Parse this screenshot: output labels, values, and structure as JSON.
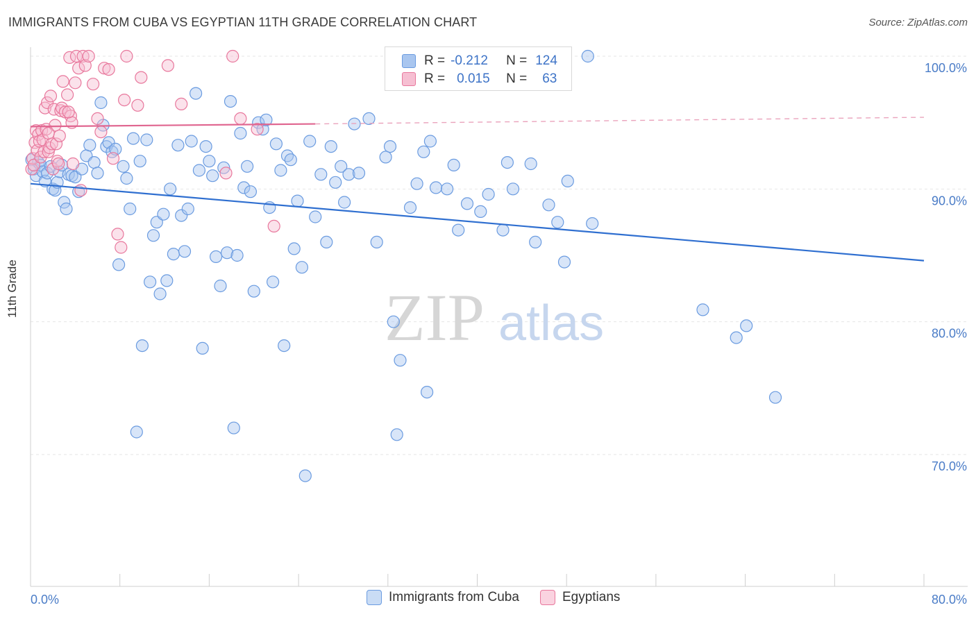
{
  "title": "IMMIGRANTS FROM CUBA VS EGYPTIAN 11TH GRADE CORRELATION CHART",
  "source": "Source: ZipAtlas.com",
  "watermark": {
    "zip": "ZIP",
    "atlas": "atlas"
  },
  "stats": [
    {
      "r_label": "R =",
      "r_value": "-0.212",
      "n_label": "N =",
      "n_value": "124",
      "color": "#4a7cc7",
      "fill": "#a9c6ef"
    },
    {
      "r_label": "R =",
      "r_value": "0.015",
      "n_label": "N =",
      "n_value": "63",
      "color": "#e8779c",
      "fill": "#f6bfd2"
    }
  ],
  "chart_data": {
    "type": "scatter",
    "title": "IMMIGRANTS FROM CUBA VS EGYPTIAN 11TH GRADE CORRELATION CHART",
    "xlabel": "",
    "ylabel": "11th Grade",
    "xlim": [
      0,
      80
    ],
    "ylim": [
      60,
      100
    ],
    "x_tick_labels": [
      "0.0%",
      "80.0%"
    ],
    "y_ticks": [
      70,
      80,
      90,
      100
    ],
    "y_tick_labels": [
      "70.0%",
      "80.0%",
      "90.0%",
      "100.0%"
    ],
    "grid": true,
    "legend_position": "bottom",
    "series": [
      {
        "name": "Immigrants from Cuba",
        "color": "#6a9be0",
        "fill": "#a9c6ef",
        "trend": {
          "x": [
            0,
            80
          ],
          "y": [
            90.4,
            84.6
          ]
        },
        "points": [
          [
            0.1,
            92.2
          ],
          [
            0.3,
            91.5
          ],
          [
            0.5,
            91.0
          ],
          [
            0.7,
            92.0
          ],
          [
            0.9,
            91.8
          ],
          [
            1.1,
            91.3
          ],
          [
            1.3,
            90.6
          ],
          [
            1.5,
            91.2
          ],
          [
            1.8,
            91.7
          ],
          [
            2.0,
            90.0
          ],
          [
            2.2,
            89.9
          ],
          [
            2.4,
            90.5
          ],
          [
            2.6,
            91.3
          ],
          [
            2.8,
            91.8
          ],
          [
            3.0,
            89.0
          ],
          [
            3.2,
            88.5
          ],
          [
            3.4,
            91.1
          ],
          [
            3.7,
            91.0
          ],
          [
            4.0,
            90.9
          ],
          [
            4.3,
            89.8
          ],
          [
            4.6,
            91.5
          ],
          [
            5.0,
            92.5
          ],
          [
            5.3,
            93.3
          ],
          [
            5.7,
            92.0
          ],
          [
            6.0,
            91.2
          ],
          [
            6.3,
            96.5
          ],
          [
            6.5,
            94.8
          ],
          [
            6.8,
            93.2
          ],
          [
            7.0,
            93.5
          ],
          [
            7.3,
            92.8
          ],
          [
            7.6,
            93.0
          ],
          [
            7.9,
            84.3
          ],
          [
            8.3,
            91.7
          ],
          [
            8.6,
            90.8
          ],
          [
            8.9,
            88.5
          ],
          [
            9.2,
            93.8
          ],
          [
            9.5,
            71.7
          ],
          [
            9.8,
            92.1
          ],
          [
            10.0,
            78.2
          ],
          [
            10.4,
            93.7
          ],
          [
            10.7,
            83.0
          ],
          [
            11.0,
            86.5
          ],
          [
            11.3,
            87.5
          ],
          [
            11.6,
            82.1
          ],
          [
            11.9,
            88.1
          ],
          [
            12.2,
            83.1
          ],
          [
            12.5,
            90.0
          ],
          [
            12.8,
            85.1
          ],
          [
            13.2,
            93.3
          ],
          [
            13.5,
            88.0
          ],
          [
            13.8,
            85.3
          ],
          [
            14.1,
            88.5
          ],
          [
            14.4,
            93.6
          ],
          [
            14.8,
            97.2
          ],
          [
            15.1,
            91.4
          ],
          [
            15.4,
            78.0
          ],
          [
            15.7,
            93.2
          ],
          [
            16.0,
            92.1
          ],
          [
            16.3,
            91.0
          ],
          [
            16.6,
            84.9
          ],
          [
            17.0,
            82.7
          ],
          [
            17.3,
            91.6
          ],
          [
            17.6,
            85.2
          ],
          [
            17.9,
            96.6
          ],
          [
            18.2,
            72.0
          ],
          [
            18.5,
            85.0
          ],
          [
            18.8,
            94.2
          ],
          [
            19.1,
            90.1
          ],
          [
            19.4,
            91.7
          ],
          [
            19.7,
            89.8
          ],
          [
            20.0,
            82.3
          ],
          [
            20.4,
            95.0
          ],
          [
            20.8,
            94.5
          ],
          [
            21.1,
            95.2
          ],
          [
            21.4,
            88.6
          ],
          [
            21.7,
            83.0
          ],
          [
            22.0,
            93.4
          ],
          [
            22.4,
            91.4
          ],
          [
            22.7,
            78.2
          ],
          [
            23.0,
            92.5
          ],
          [
            23.3,
            92.2
          ],
          [
            23.6,
            85.5
          ],
          [
            23.9,
            89.1
          ],
          [
            24.3,
            84.1
          ],
          [
            24.6,
            68.4
          ],
          [
            25.0,
            93.6
          ],
          [
            25.5,
            87.9
          ],
          [
            26.0,
            91.1
          ],
          [
            26.5,
            86.0
          ],
          [
            26.9,
            93.2
          ],
          [
            27.3,
            90.5
          ],
          [
            27.8,
            91.7
          ],
          [
            28.1,
            89.0
          ],
          [
            28.5,
            91.1
          ],
          [
            29.0,
            94.9
          ],
          [
            29.4,
            91.2
          ],
          [
            30.3,
            95.3
          ],
          [
            31.0,
            86.0
          ],
          [
            31.8,
            92.4
          ],
          [
            32.2,
            93.2
          ],
          [
            32.5,
            80.0
          ],
          [
            32.8,
            71.5
          ],
          [
            33.1,
            77.1
          ],
          [
            34.0,
            88.6
          ],
          [
            34.6,
            90.4
          ],
          [
            35.2,
            92.8
          ],
          [
            35.5,
            74.7
          ],
          [
            35.8,
            93.6
          ],
          [
            36.3,
            90.1
          ],
          [
            37.3,
            90.0
          ],
          [
            37.9,
            91.8
          ],
          [
            38.3,
            86.9
          ],
          [
            39.1,
            88.9
          ],
          [
            40.3,
            88.3
          ],
          [
            41.0,
            89.6
          ],
          [
            42.3,
            86.9
          ],
          [
            42.7,
            92.0
          ],
          [
            43.2,
            90.0
          ],
          [
            44.8,
            91.9
          ],
          [
            45.2,
            86.0
          ],
          [
            46.4,
            88.8
          ],
          [
            47.2,
            87.5
          ],
          [
            47.8,
            84.5
          ],
          [
            48.1,
            90.6
          ],
          [
            49.9,
            100.0
          ],
          [
            50.3,
            87.4
          ],
          [
            60.2,
            80.9
          ],
          [
            63.2,
            78.8
          ],
          [
            64.1,
            79.7
          ],
          [
            66.7,
            74.3
          ]
        ]
      },
      {
        "name": "Egyptians",
        "color": "#e8779c",
        "fill": "#f6bfd2",
        "trend": {
          "x": [
            0,
            25.5
          ],
          "y": [
            94.7,
            94.9
          ],
          "dash_to": [
            80,
            95.4
          ]
        },
        "points": [
          [
            0.1,
            91.5
          ],
          [
            0.2,
            92.3
          ],
          [
            0.3,
            91.8
          ],
          [
            0.4,
            93.5
          ],
          [
            0.5,
            94.4
          ],
          [
            0.6,
            92.9
          ],
          [
            0.7,
            94.1
          ],
          [
            0.8,
            93.6
          ],
          [
            0.9,
            92.4
          ],
          [
            1.0,
            94.4
          ],
          [
            1.1,
            93.7
          ],
          [
            1.2,
            92.8
          ],
          [
            1.3,
            96.1
          ],
          [
            1.4,
            94.5
          ],
          [
            1.5,
            96.5
          ],
          [
            1.6,
            92.8
          ],
          [
            1.7,
            93.1
          ],
          [
            1.8,
            97.0
          ],
          [
            1.9,
            93.4
          ],
          [
            2.0,
            91.5
          ],
          [
            2.1,
            96.0
          ],
          [
            2.2,
            94.8
          ],
          [
            2.3,
            93.4
          ],
          [
            2.4,
            92.1
          ],
          [
            2.5,
            91.9
          ],
          [
            2.6,
            94.0
          ],
          [
            2.7,
            95.9
          ],
          [
            2.8,
            96.1
          ],
          [
            2.9,
            98.1
          ],
          [
            3.1,
            95.8
          ],
          [
            3.3,
            97.1
          ],
          [
            3.5,
            99.9
          ],
          [
            3.6,
            95.5
          ],
          [
            3.7,
            95.0
          ],
          [
            3.8,
            91.9
          ],
          [
            4.0,
            98.0
          ],
          [
            4.1,
            100.0
          ],
          [
            4.3,
            99.1
          ],
          [
            4.5,
            89.9
          ],
          [
            4.7,
            100.0
          ],
          [
            4.9,
            99.3
          ],
          [
            5.2,
            100.0
          ],
          [
            5.6,
            97.9
          ],
          [
            6.0,
            95.3
          ],
          [
            6.3,
            94.3
          ],
          [
            6.6,
            99.1
          ],
          [
            7.0,
            99.0
          ],
          [
            7.4,
            92.3
          ],
          [
            7.8,
            86.6
          ],
          [
            8.1,
            85.6
          ],
          [
            8.4,
            96.7
          ],
          [
            8.6,
            100.0
          ],
          [
            9.6,
            96.3
          ],
          [
            9.9,
            98.4
          ],
          [
            12.3,
            99.3
          ],
          [
            13.5,
            96.4
          ],
          [
            17.5,
            91.2
          ],
          [
            18.1,
            100.0
          ],
          [
            18.8,
            95.3
          ],
          [
            20.3,
            94.5
          ],
          [
            21.8,
            87.2
          ],
          [
            3.4,
            95.8
          ],
          [
            1.6,
            94.2
          ]
        ]
      }
    ]
  },
  "legend": [
    {
      "label": "Immigrants from Cuba",
      "fill": "#c9dcf5",
      "border": "#6a9be0"
    },
    {
      "label": "Egyptians",
      "fill": "#fad3e0",
      "border": "#e8779c"
    }
  ]
}
